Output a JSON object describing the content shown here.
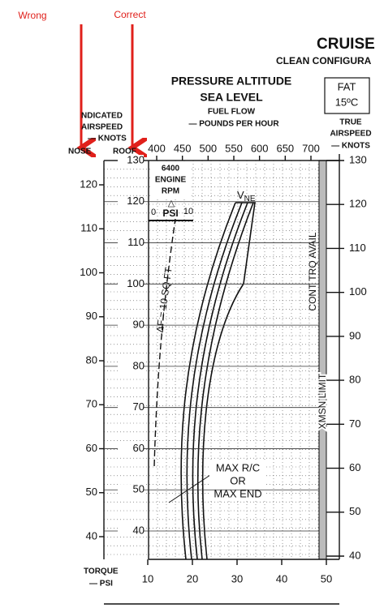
{
  "annotations": {
    "wrong": "Wrong",
    "correct": "Correct"
  },
  "header": {
    "title": "CRUISE",
    "subtitle": "CLEAN CONFIGURA"
  },
  "altitude": {
    "title": "PRESSURE ALTITUDE",
    "value": "SEA LEVEL",
    "fuel_flow": "FUEL FLOW",
    "fuel_units": "— POUNDS PER HOUR"
  },
  "fat": {
    "label": "FAT",
    "value": "15ºC"
  },
  "axes": {
    "indicated": {
      "line1": "NDICATED",
      "line2": "AIRSPEED",
      "line3": "— KNOTS"
    },
    "nose": {
      "label": "NOSE",
      "ticks": [
        120,
        110,
        100,
        90,
        80,
        70,
        60,
        50,
        40
      ]
    },
    "roof": {
      "label": "ROOF",
      "ticks": [
        130,
        120,
        110,
        100,
        90,
        80,
        70,
        60,
        50,
        40
      ]
    },
    "true_airspeed": {
      "line1": "TRUE",
      "line2": "AIRSPEED",
      "line3": "— KNOTS",
      "ticks": [
        130,
        120,
        110,
        100,
        90,
        80,
        70,
        60,
        50,
        40
      ]
    },
    "fuel_flow": {
      "ticks": [
        400,
        450,
        500,
        550,
        600,
        650,
        700
      ]
    },
    "torque": {
      "line1": "TORQUE",
      "line2": "— PSI",
      "ticks": [
        10,
        20,
        30,
        40,
        50
      ]
    }
  },
  "labels": {
    "rpm_value": "6400",
    "rpm_line1": "ENGINE",
    "rpm_line2": "RPM",
    "delta": "△",
    "psi_zero": "0",
    "psi": "PSI",
    "psi_ten": "10",
    "vne": "V",
    "vne_sub": "NE",
    "cont_trq": "CONT TRQ AVAIL",
    "xmsn": "XMSN LIMIT",
    "drag": "ΔF = 10 SQ FT",
    "max_rc": "MAX R/C",
    "or": "OR",
    "max_end": "MAX END"
  }
}
